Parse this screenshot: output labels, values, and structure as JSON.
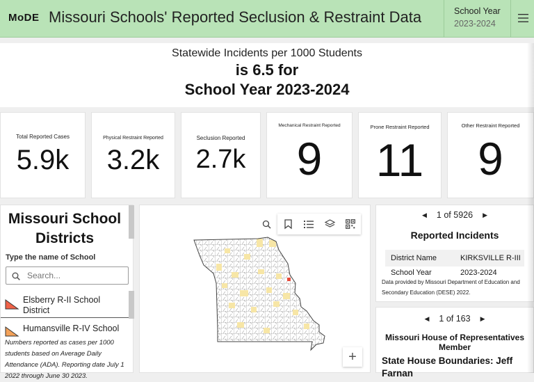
{
  "header": {
    "logo": "MoDE",
    "title": "Missouri Schools' Reported Seclusion & Restraint Data",
    "year_label": "School Year",
    "year_value": "2023-2024"
  },
  "banner": {
    "subtitle": "Statewide Incidents per 1000 Students",
    "line1": "is 6.5 for",
    "line2": "School Year 2023-2024"
  },
  "stats": [
    {
      "label": "Total Reported Cases",
      "value": "5.9k"
    },
    {
      "label": "Physical Restraint Reported",
      "value": "3.2k"
    },
    {
      "label": "Seclusion Reported",
      "value": "2.7k"
    },
    {
      "label": "Mechanical Restraint Reported",
      "value": "9"
    },
    {
      "label": "Prone Restraint Reported",
      "value": "11"
    },
    {
      "label": "Other Restraint Reported",
      "value": "9"
    }
  ],
  "districts": {
    "title": "Missouri School Districts",
    "subtitle_cut": "Type the name of School",
    "search_placeholder": "Search...",
    "items": [
      {
        "label": "Elsberry R-II School District",
        "color": "#f06248"
      },
      {
        "label": "Humansville R-IV School",
        "color": "#f4a259"
      }
    ],
    "note": "Numbers reported as cases per 1000 students based on Average Daily Attendance (ADA). Reporting date July 1 2022 through June 30 2023."
  },
  "map": {
    "zoom_in": "+",
    "colors": {
      "high": "#e84a3a",
      "mid": "#f7e6a6",
      "low": "#ffffff"
    }
  },
  "incidents": {
    "page": "1 of 5926",
    "title": "Reported Incidents",
    "rows": [
      {
        "key": "District Name",
        "value": "KIRKSVILLE R-III"
      },
      {
        "key": "School Year",
        "value": "2023-2024"
      }
    ],
    "source": "Data provided by Missouri Department of Education and Secondary Education (DESE) 2022."
  },
  "house": {
    "page": "1 of 163",
    "title": "Missouri House of Representatives Member",
    "subtitle": "State House Boundaries: Jeff Farnan"
  }
}
